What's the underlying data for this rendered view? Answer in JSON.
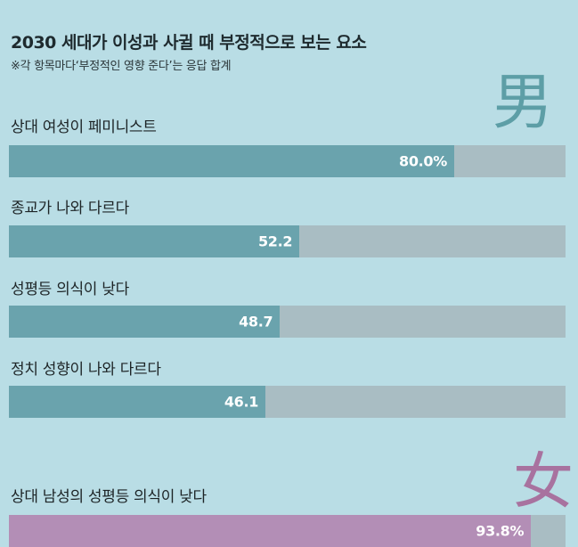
{
  "header": {
    "title": "2030 세대가 이성과 사귈 때 부정적으로 보는 요소",
    "subtitle": "※각 항목마다‘부정적인 영향 준다’는 응답 합계"
  },
  "glyphs": {
    "male": "男",
    "female": "女"
  },
  "colors": {
    "male_bar": "#6aa3ad",
    "female_bar": "#b38eb6",
    "track": "#a9bdc3",
    "background": "#b9dde5"
  },
  "chart_data": {
    "type": "bar",
    "orientation": "horizontal",
    "title": "2030 세대가 이성과 사귈 때 부정적으로 보는 요소",
    "subtitle": "※각 항목마다‘부정적인 영향 준다’는 응답 합계",
    "xlim": [
      0,
      100
    ],
    "groups": [
      {
        "name": "男",
        "bars": [
          {
            "label": "상대 여성이 페미니스트",
            "value": 80.0,
            "display": "80.0%"
          },
          {
            "label": "종교가 나와 다르다",
            "value": 52.2,
            "display": "52.2"
          },
          {
            "label": "성평등 의식이 낮다",
            "value": 48.7,
            "display": "48.7"
          },
          {
            "label": "정치 성향이 나와 다르다",
            "value": 46.1,
            "display": "46.1"
          }
        ]
      },
      {
        "name": "女",
        "bars": [
          {
            "label": "상대 남성의 성평등 의식이 낮다",
            "value": 93.8,
            "display": "93.8%"
          }
        ]
      }
    ]
  }
}
